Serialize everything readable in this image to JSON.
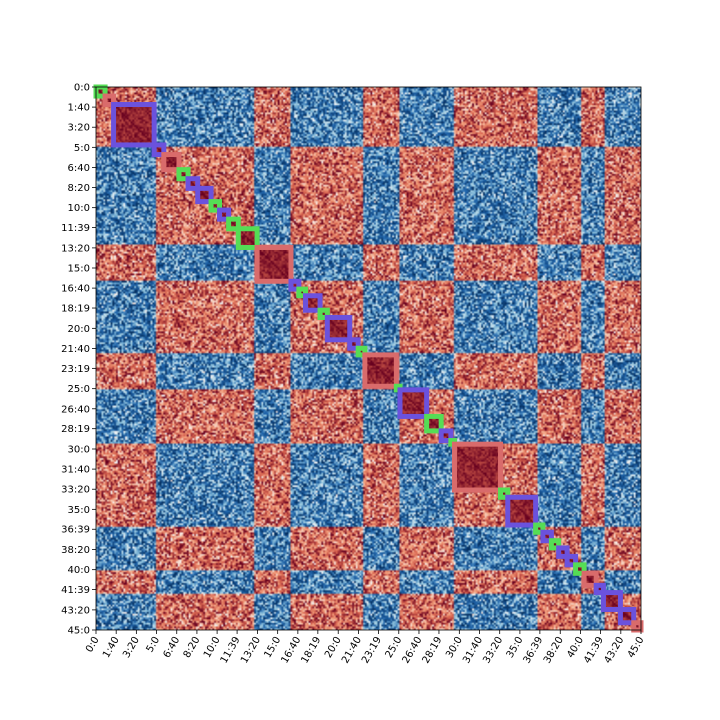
{
  "chart_data": {
    "type": "heatmap",
    "title": "",
    "xlabel": "",
    "ylabel": "",
    "description_range": [
      0,
      45
    ],
    "colormap": "RdBu_r",
    "tick_labels": [
      "0:0",
      "1:40",
      "3:20",
      "5:0",
      "6:40",
      "8:20",
      "10:0",
      "11:39",
      "13:20",
      "15:0",
      "16:40",
      "18:19",
      "20:0",
      "21:40",
      "23:19",
      "25:0",
      "26:40",
      "28:19",
      "30:0",
      "31:40",
      "33:20",
      "35:0",
      "36:39",
      "38:20",
      "40:0",
      "41:39",
      "43:20",
      "45:0"
    ],
    "tick_minutes": [
      0,
      1.667,
      3.333,
      5,
      6.667,
      8.333,
      10,
      11.65,
      13.333,
      15,
      16.667,
      18.317,
      20,
      21.667,
      23.317,
      25,
      26.667,
      28.317,
      30,
      31.667,
      33.333,
      35,
      36.65,
      38.333,
      40,
      41.65,
      43.333,
      45
    ],
    "segments": [
      {
        "start": 0.0,
        "end": 0.75,
        "color": "#55dd55"
      },
      {
        "start": 0.75,
        "end": 1.45,
        "color": "#d96b6b"
      },
      {
        "start": 1.45,
        "end": 4.8,
        "color": "#6b52dd"
      },
      {
        "start": 4.8,
        "end": 5.6,
        "color": "#6b52dd"
      },
      {
        "start": 5.6,
        "end": 6.85,
        "color": "#d96b6b"
      },
      {
        "start": 6.85,
        "end": 7.6,
        "color": "#55dd55"
      },
      {
        "start": 7.6,
        "end": 8.4,
        "color": "#6b52dd"
      },
      {
        "start": 8.4,
        "end": 9.5,
        "color": "#6b52dd"
      },
      {
        "start": 9.5,
        "end": 10.2,
        "color": "#55dd55"
      },
      {
        "start": 10.2,
        "end": 10.95,
        "color": "#6b52dd"
      },
      {
        "start": 10.95,
        "end": 11.75,
        "color": "#55dd55"
      },
      {
        "start": 11.75,
        "end": 13.3,
        "color": "#55dd55"
      },
      {
        "start": 13.3,
        "end": 16.1,
        "color": "#d96b6b"
      },
      {
        "start": 16.1,
        "end": 16.75,
        "color": "#6b52dd"
      },
      {
        "start": 16.75,
        "end": 17.3,
        "color": "#55dd55"
      },
      {
        "start": 17.3,
        "end": 18.5,
        "color": "#6b52dd"
      },
      {
        "start": 18.5,
        "end": 19.1,
        "color": "#55dd55"
      },
      {
        "start": 19.1,
        "end": 20.95,
        "color": "#6b52dd"
      },
      {
        "start": 20.95,
        "end": 21.65,
        "color": "#6b52dd"
      },
      {
        "start": 21.65,
        "end": 22.2,
        "color": "#55dd55"
      },
      {
        "start": 22.2,
        "end": 24.8,
        "color": "#d96b6b"
      },
      {
        "start": 24.8,
        "end": 25.1,
        "color": "#55dd55"
      },
      {
        "start": 25.1,
        "end": 27.3,
        "color": "#6b52dd"
      },
      {
        "start": 27.3,
        "end": 28.5,
        "color": "#55dd55"
      },
      {
        "start": 28.5,
        "end": 29.3,
        "color": "#6b52dd"
      },
      {
        "start": 29.3,
        "end": 29.6,
        "color": "#55dd55"
      },
      {
        "start": 29.6,
        "end": 33.4,
        "color": "#d96b6b"
      },
      {
        "start": 33.4,
        "end": 34.0,
        "color": "#55dd55"
      },
      {
        "start": 34.0,
        "end": 36.3,
        "color": "#6b52dd"
      },
      {
        "start": 36.3,
        "end": 36.9,
        "color": "#55dd55"
      },
      {
        "start": 36.9,
        "end": 37.6,
        "color": "#6b52dd"
      },
      {
        "start": 37.6,
        "end": 38.2,
        "color": "#55dd55"
      },
      {
        "start": 38.2,
        "end": 38.9,
        "color": "#6b52dd"
      },
      {
        "start": 38.9,
        "end": 39.6,
        "color": "#6b52dd"
      },
      {
        "start": 39.6,
        "end": 40.3,
        "color": "#55dd55"
      },
      {
        "start": 40.3,
        "end": 41.3,
        "color": "#d96b6b"
      },
      {
        "start": 41.3,
        "end": 41.9,
        "color": "#6b52dd"
      },
      {
        "start": 41.9,
        "end": 43.3,
        "color": "#6b52dd"
      },
      {
        "start": 43.3,
        "end": 44.4,
        "color": "#6b52dd"
      },
      {
        "start": 44.4,
        "end": 45.0,
        "color": "#d96b6b"
      }
    ],
    "clusters": [
      {
        "start": 0,
        "end": 5,
        "sign": 1
      },
      {
        "start": 5,
        "end": 8.5,
        "sign": -1
      },
      {
        "start": 8.5,
        "end": 13,
        "sign": -1
      },
      {
        "start": 13,
        "end": 16,
        "sign": 1
      },
      {
        "start": 16,
        "end": 19,
        "sign": -1
      },
      {
        "start": 19,
        "end": 22,
        "sign": -1
      },
      {
        "start": 22,
        "end": 25,
        "sign": 1
      },
      {
        "start": 25,
        "end": 28,
        "sign": -1
      },
      {
        "start": 28,
        "end": 29.6,
        "sign": -1
      },
      {
        "start": 29.6,
        "end": 33.4,
        "sign": 1
      },
      {
        "start": 33.4,
        "end": 36.5,
        "sign": 1
      },
      {
        "start": 36.5,
        "end": 40,
        "sign": -1
      },
      {
        "start": 40,
        "end": 42,
        "sign": 1
      },
      {
        "start": 42,
        "end": 45,
        "sign": -1
      }
    ]
  }
}
